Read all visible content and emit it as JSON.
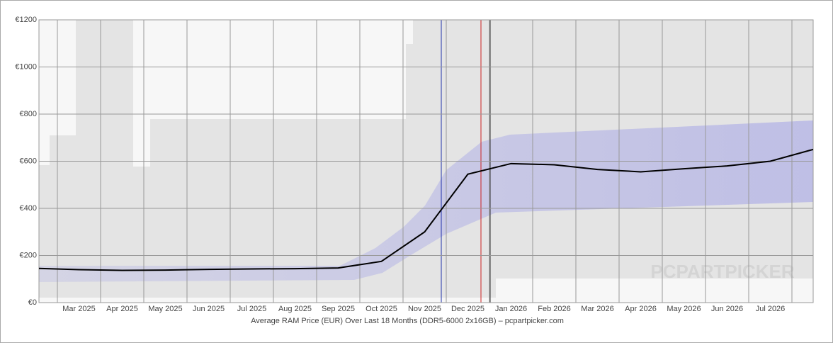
{
  "chart_data": {
    "type": "line",
    "title": "Average RAM Price (EUR) Over Last 18 Months (DDR5-6000 2x16GB) – pcpartpicker.com",
    "watermark": "PCPARTPICKER",
    "categories": [
      null,
      "Mar 2025",
      "Apr 2025",
      "May 2025",
      "Jun 2025",
      "Jul 2025",
      "Aug 2025",
      "Sep 2025",
      "Oct 2025",
      "Nov 2025",
      "Dec 2025",
      "Jan 2026",
      "Feb 2026",
      "Mar 2026",
      "Apr 2026",
      "May 2026",
      "Jun 2026",
      "Jul 2026",
      null
    ],
    "values": [
      145,
      140,
      137,
      138,
      141,
      143,
      144,
      147,
      175,
      300,
      545,
      590,
      585,
      565,
      555,
      568,
      580,
      600,
      650
    ],
    "color": "#000000",
    "ylim": [
      0,
      1200
    ],
    "yticks": [
      {
        "value": 0,
        "label": "€0"
      },
      {
        "value": 200,
        "label": "€200"
      },
      {
        "value": 400,
        "label": "€400"
      },
      {
        "value": 600,
        "label": "€600"
      },
      {
        "value": 800,
        "label": "€800"
      },
      {
        "value": 1000,
        "label": "€1000"
      },
      {
        "value": 1200,
        "label": "€1200"
      }
    ],
    "grid": true
  }
}
